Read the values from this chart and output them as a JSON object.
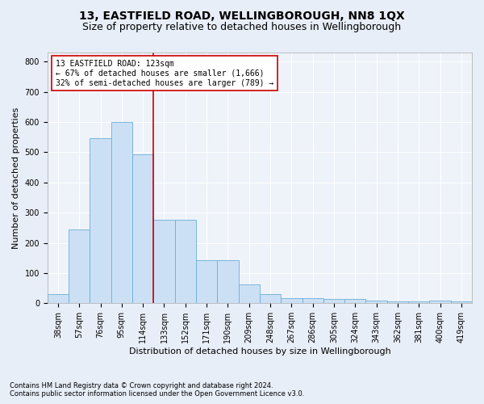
{
  "title": "13, EASTFIELD ROAD, WELLINGBOROUGH, NN8 1QX",
  "subtitle": "Size of property relative to detached houses in Wellingborough",
  "xlabel": "Distribution of detached houses by size in Wellingborough",
  "ylabel": "Number of detached properties",
  "footnote1": "Contains HM Land Registry data © Crown copyright and database right 2024.",
  "footnote2": "Contains public sector information licensed under the Open Government Licence v3.0.",
  "bar_labels": [
    "38sqm",
    "57sqm",
    "76sqm",
    "95sqm",
    "114sqm",
    "133sqm",
    "152sqm",
    "171sqm",
    "190sqm",
    "209sqm",
    "248sqm",
    "267sqm",
    "286sqm",
    "305sqm",
    "324sqm",
    "343sqm",
    "362sqm",
    "381sqm",
    "400sqm",
    "419sqm"
  ],
  "bar_values": [
    30,
    245,
    547,
    600,
    493,
    277,
    277,
    143,
    143,
    63,
    30,
    18,
    18,
    13,
    13,
    10,
    5,
    5,
    8,
    5
  ],
  "bar_color": "#cce0f5",
  "bar_edge_color": "#6aaed6",
  "vline_x": 4.5,
  "vline_color": "#cc0000",
  "annotation_text": "13 EASTFIELD ROAD: 123sqm\n← 67% of detached houses are smaller (1,666)\n32% of semi-detached houses are larger (789) →",
  "annotation_box_color": "#ffffff",
  "annotation_box_edge": "#cc0000",
  "ylim": [
    0,
    830
  ],
  "yticks": [
    0,
    100,
    200,
    300,
    400,
    500,
    600,
    700,
    800
  ],
  "bg_color": "#e8eef7",
  "plot_bg_color": "#eef2f9",
  "grid_color": "#ffffff",
  "title_fontsize": 10,
  "subtitle_fontsize": 9,
  "axis_label_fontsize": 8,
  "tick_fontsize": 7,
  "annotation_fontsize": 7
}
